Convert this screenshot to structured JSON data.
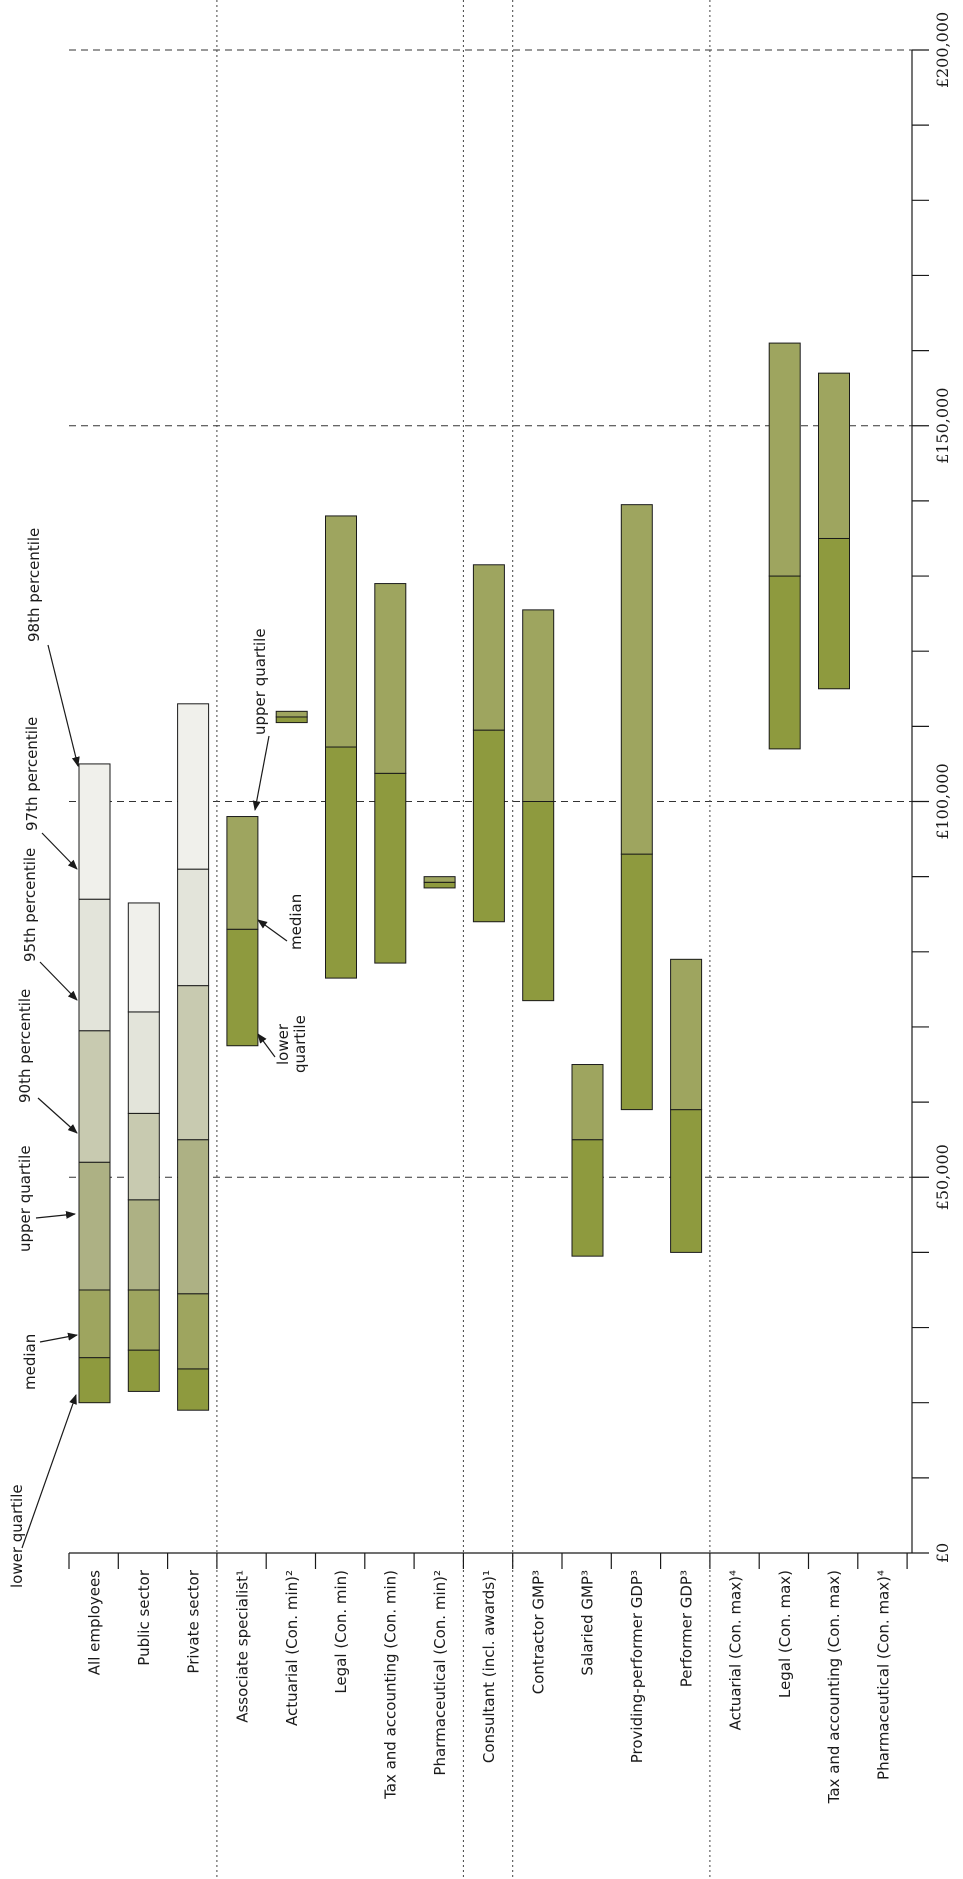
{
  "chart_data": {
    "type": "bar",
    "orientation": "horizontal-range (floating bars)",
    "value_axis": {
      "min": 0,
      "max": 200000,
      "major_ticks": [
        0,
        50000,
        100000,
        150000,
        200000
      ],
      "minor_step": 10000,
      "tick_labels": [
        "£0",
        "£50,000",
        "£100,000",
        "£150,000",
        "£200,000"
      ],
      "reference_lines": [
        50000,
        100000,
        150000,
        200000
      ]
    },
    "categories": [
      "All employees",
      "Public sector",
      "Private sector",
      "Associate specialist¹",
      "Actuarial (Con. min)²",
      "Legal (Con. min)",
      "Tax and accounting (Con. min)",
      "Pharmaceutical (Con. min)²",
      "Consultant (incl. awards)¹",
      "Contractor GMP³",
      "Salaried GMP³",
      "Providing-performer GDP³",
      "Performer GDP³",
      "Actuarial (Con. max)⁴",
      "Legal (Con. max)",
      "Tax and accounting (Con. max)",
      "Pharmaceutical (Con. max)⁴"
    ],
    "group_separators_after": [
      2,
      7,
      8,
      12
    ],
    "colors": {
      "lower_to_median": "#8e9a3e",
      "median_to_upper": "#9ea55f",
      "upper_to_90": "#adb184",
      "p90_to_95": "#c8cab0",
      "p95_to_97": "#e3e4da",
      "p97_to_98": "#f0f0eb",
      "border": "#1a1a1a"
    },
    "distributions": [
      {
        "category": "All employees",
        "lower_quartile": 20000,
        "median": 26000,
        "upper_quartile": 35000,
        "p90": 52000,
        "p95": 69500,
        "p97": 87000,
        "p98": 105000
      },
      {
        "category": "Public sector",
        "lower_quartile": 21500,
        "median": 27000,
        "upper_quartile": 35000,
        "p90": 47000,
        "p95": 58500,
        "p97": 72000,
        "p98": 86500
      },
      {
        "category": "Private sector",
        "lower_quartile": 19000,
        "median": 24500,
        "upper_quartile": 34500,
        "p90": 55000,
        "p95": 75500,
        "p97": 91000,
        "p98": 113000
      }
    ],
    "ranges": [
      {
        "category": "Associate specialist¹",
        "lower_quartile": 67500,
        "median": 83000,
        "upper_quartile": 98000
      },
      {
        "category": "Actuarial (Con. min)²",
        "min": 110500,
        "max": 112000
      },
      {
        "category": "Legal (Con. min)",
        "min": 76500,
        "max": 138000
      },
      {
        "category": "Tax and accounting (Con. min)",
        "min": 78500,
        "max": 129000
      },
      {
        "category": "Pharmaceutical (Con. min)²",
        "min": 88500,
        "max": 90000
      },
      {
        "category": "Consultant (incl. awards)¹",
        "lower_quartile": 84000,
        "median": 109500,
        "upper_quartile": 131500
      },
      {
        "category": "Contractor GMP³",
        "lower_quartile": 73500,
        "median": 100000,
        "upper_quartile": 125500
      },
      {
        "category": "Salaried GMP³",
        "lower_quartile": 39500,
        "median": 55000,
        "upper_quartile": 65000
      },
      {
        "category": "Providing-performer GDP³",
        "lower_quartile": 59000,
        "median": 93000,
        "upper_quartile": 139500
      },
      {
        "category": "Performer GDP³",
        "lower_quartile": 40000,
        "median": 59000,
        "upper_quartile": 79000
      },
      {
        "category": "Actuarial (Con. max)⁴",
        "min": 0,
        "max": 0
      },
      {
        "category": "Legal (Con. max)",
        "lower": 107000,
        "split": 130000,
        "upper": 161000
      },
      {
        "category": "Tax and accounting (Con. max)",
        "lower": 115000,
        "split": 135000,
        "upper": 157000
      },
      {
        "category": "Pharmaceutical (Con. max)⁴",
        "min": 0,
        "max": 0
      }
    ],
    "annotations": [
      "lower quartile",
      "median",
      "upper quartile",
      "90th percentile",
      "95th percentile",
      "97th percentile",
      "98th percentile",
      "upper quartile",
      "median",
      "lower quartile"
    ]
  }
}
